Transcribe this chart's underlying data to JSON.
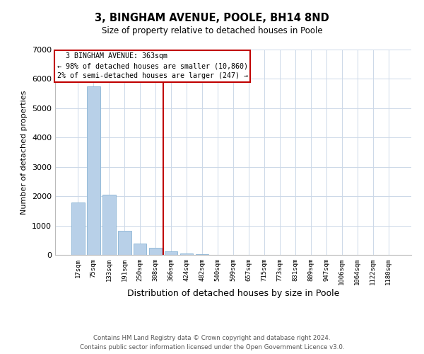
{
  "title": "3, BINGHAM AVENUE, POOLE, BH14 8ND",
  "subtitle": "Size of property relative to detached houses in Poole",
  "xlabel": "Distribution of detached houses by size in Poole",
  "ylabel": "Number of detached properties",
  "bar_labels": [
    "17sqm",
    "75sqm",
    "133sqm",
    "191sqm",
    "250sqm",
    "308sqm",
    "366sqm",
    "424sqm",
    "482sqm",
    "540sqm",
    "599sqm",
    "657sqm",
    "715sqm",
    "773sqm",
    "831sqm",
    "889sqm",
    "947sqm",
    "1006sqm",
    "1064sqm",
    "1122sqm",
    "1180sqm"
  ],
  "bar_values": [
    1780,
    5750,
    2050,
    830,
    380,
    240,
    110,
    60,
    20,
    10,
    5,
    0,
    0,
    0,
    0,
    0,
    0,
    0,
    0,
    0,
    0
  ],
  "bar_color": "#b8d0e8",
  "bar_edge_color": "#8ab4d4",
  "vline_color": "#c00000",
  "vline_x_index": 5.5,
  "annotation_title": "3 BINGHAM AVENUE: 363sqm",
  "annotation_line1": "← 98% of detached houses are smaller (10,860)",
  "annotation_line2": "2% of semi-detached houses are larger (247) →",
  "annotation_box_color": "#c00000",
  "ylim": [
    0,
    7000
  ],
  "yticks": [
    0,
    1000,
    2000,
    3000,
    4000,
    5000,
    6000,
    7000
  ],
  "footnote1": "Contains HM Land Registry data © Crown copyright and database right 2024.",
  "footnote2": "Contains public sector information licensed under the Open Government Licence v3.0.",
  "bg_color": "#ffffff",
  "grid_color": "#ccd8e8"
}
